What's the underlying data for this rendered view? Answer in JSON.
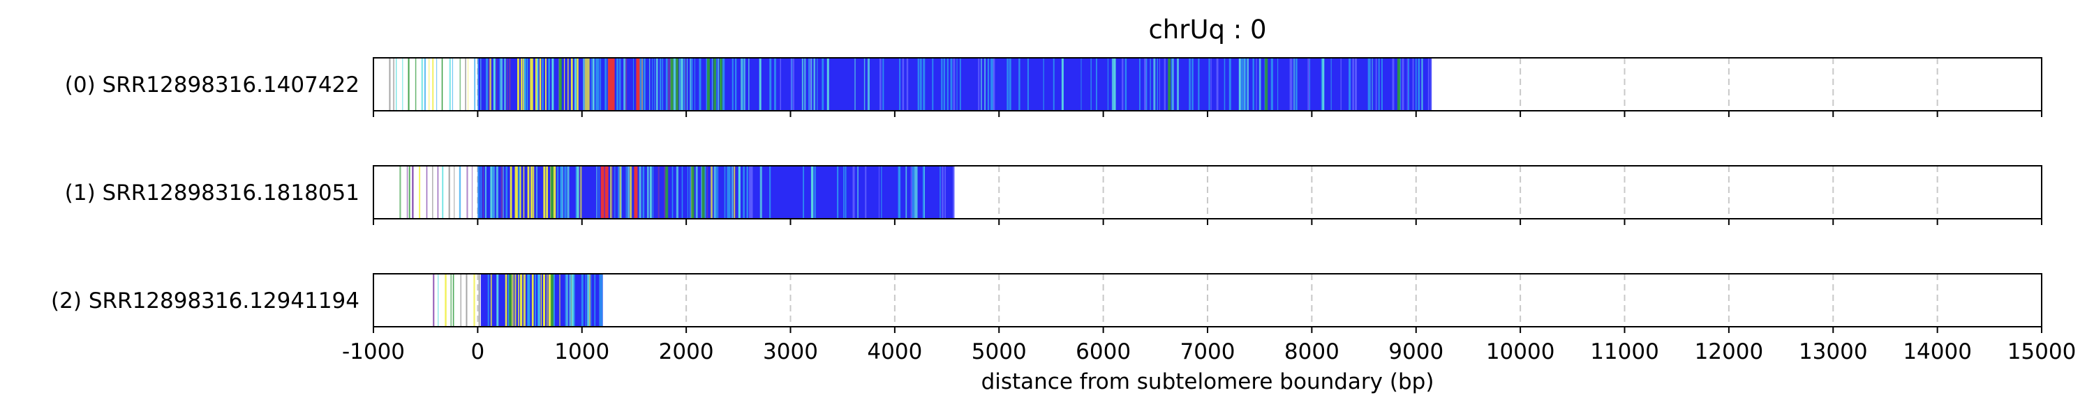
{
  "chart_data": {
    "type": "stacked-read-tracks",
    "title": "chrUq : 0",
    "xlabel": "distance from subtelomere boundary (bp)",
    "xlim": [
      -1000,
      15000
    ],
    "xticks": [
      -1000,
      0,
      1000,
      2000,
      3000,
      4000,
      5000,
      6000,
      7000,
      8000,
      9000,
      10000,
      11000,
      12000,
      13000,
      14000,
      15000
    ],
    "grid": "vertical dashed",
    "colors": {
      "blue": "#2a2af5",
      "light_blue": "#2ea8f0",
      "cyan": "#5ee0e0",
      "yellow": "#f0ee3a",
      "red": "#e8333a",
      "green": "#2e9a3a",
      "purple": "#7a3aa8",
      "grey": "#9a9a9a"
    },
    "reads": [
      {
        "label": "(0) SRR12898316.1407422",
        "dense_start": 0,
        "end": 9150,
        "sparse_start": -850,
        "yellow_zone": [
          350,
          950
        ],
        "red_marks": [
          1250,
          1280,
          1520
        ],
        "green_marks": [
          780,
          1850,
          1900,
          2200,
          2260,
          2320,
          6620,
          7550,
          8820
        ],
        "light_marks": [
          150,
          1100,
          1950,
          2700,
          3350,
          5600,
          6100,
          7300,
          8100
        ]
      },
      {
        "label": "(1) SRR12898316.1818051",
        "dense_start": 0,
        "end": 4570,
        "sparse_start": -750,
        "yellow_zone": [
          300,
          800
        ],
        "red_marks": [
          1180,
          1220,
          1500
        ],
        "green_marks": [
          700,
          1800,
          2050,
          2150
        ],
        "light_marks": [
          120,
          950,
          1650,
          2500,
          3200
        ]
      },
      {
        "label": "(2) SRR12898316.12941194",
        "dense_start": 30,
        "end": 1200,
        "sparse_start": -430,
        "yellow_zone": [
          250,
          780
        ],
        "red_marks": [],
        "green_marks": [
          300,
          700
        ],
        "light_marks": [
          180,
          900,
          1050
        ]
      }
    ]
  }
}
